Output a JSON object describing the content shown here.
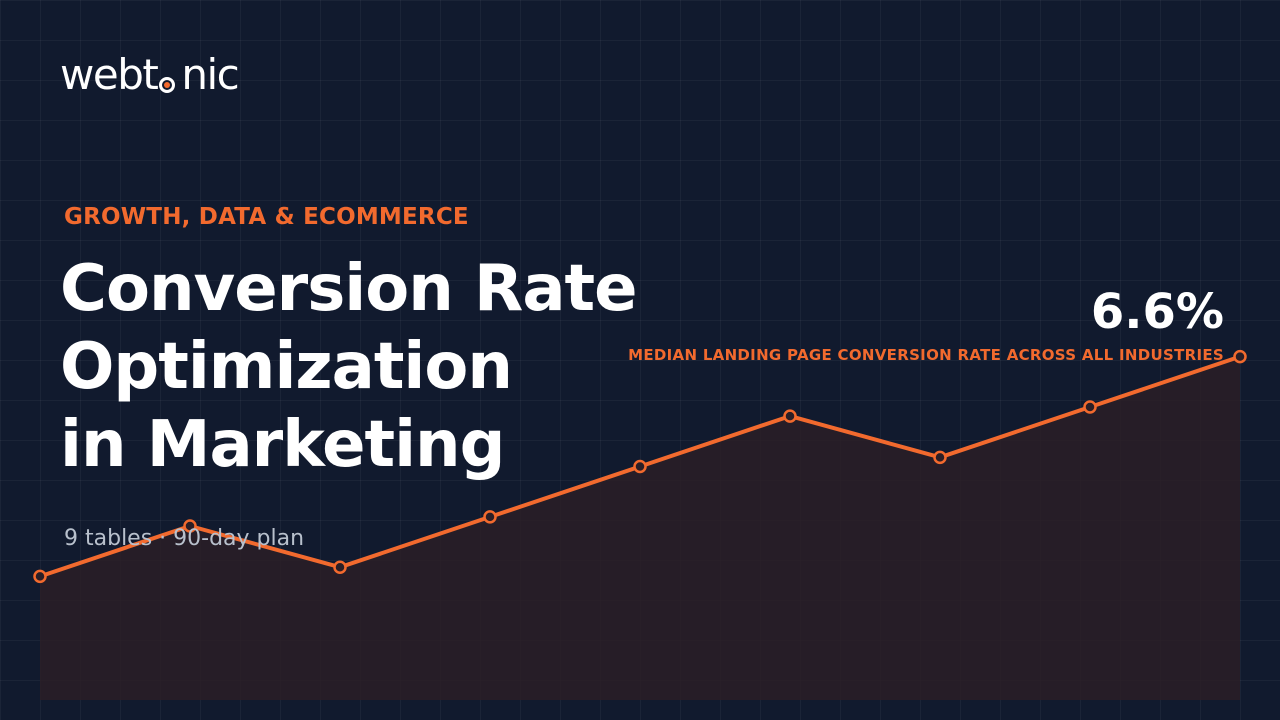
{
  "brand": {
    "logo_before": "webt",
    "logo_after": "nic",
    "accent_color": "#f26a2e"
  },
  "header": {
    "eyebrow": "GROWTH, DATA & ECOMMERCE",
    "title_lines": [
      "Conversion Rate",
      "Optimization",
      "in Marketing"
    ],
    "subtitle": "9 tables · 90-day plan"
  },
  "stat": {
    "value": "6.6%",
    "label": "MEDIAN LANDING PAGE CONVERSION RATE ACROSS ALL INDUSTRIES"
  },
  "chart_data": {
    "type": "line",
    "values": [
      2.6,
      3.7,
      2.8,
      3.9,
      5.0,
      6.1,
      5.2,
      6.3,
      7.4
    ],
    "ylim": [
      -0.1,
      8.2
    ],
    "grid": true,
    "line_color": "#f26a2e",
    "fill_color": "#2a1e26"
  }
}
